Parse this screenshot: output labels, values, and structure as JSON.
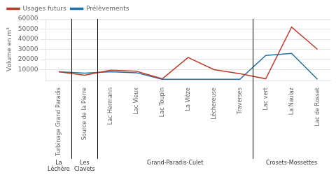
{
  "chart_data": {
    "type": "line",
    "categories": [
      "Turbinage Grand Paradis",
      "Source de la Pierre",
      "Lac Hermann",
      "Lac Vieux",
      "Lac Toupin",
      "La Vièze",
      "Léchereuse",
      "Traverses",
      "Lac vert",
      "La Naulaz",
      "Lac de Rosset"
    ],
    "series": [
      {
        "name": "Usages futurs",
        "color": "#c0392b",
        "values": [
          8000,
          4500,
          9500,
          8500,
          1000,
          22000,
          10000,
          6000,
          1000,
          52000,
          30000
        ]
      },
      {
        "name": "Prélèvements",
        "color": "#2471a3",
        "values": [
          8000,
          6500,
          8000,
          7000,
          500,
          500,
          500,
          500,
          24000,
          26000,
          500
        ]
      }
    ],
    "groups": [
      {
        "label": "La\nLéchère",
        "categories": [
          "Turbinage Grand Paradis"
        ]
      },
      {
        "label": "Les\nClavets",
        "categories": [
          "Source de la Pierre"
        ]
      },
      {
        "label": "Grand-Paradis-Culet",
        "categories": [
          "Lac Hermann",
          "Lac Vieux",
          "Lac Toupin",
          "La Vièze",
          "Léchereuse",
          "Traverses"
        ]
      },
      {
        "label": "Crosets-Mossettes",
        "categories": [
          "Lac vert",
          "La Naulaz",
          "Lac de Rosset"
        ]
      }
    ],
    "ylabel": "Volume en m³",
    "ylim": [
      0,
      60000
    ],
    "yticks": [
      10000,
      20000,
      30000,
      40000,
      50000,
      60000
    ],
    "grid": "y",
    "legend": "upper left"
  }
}
